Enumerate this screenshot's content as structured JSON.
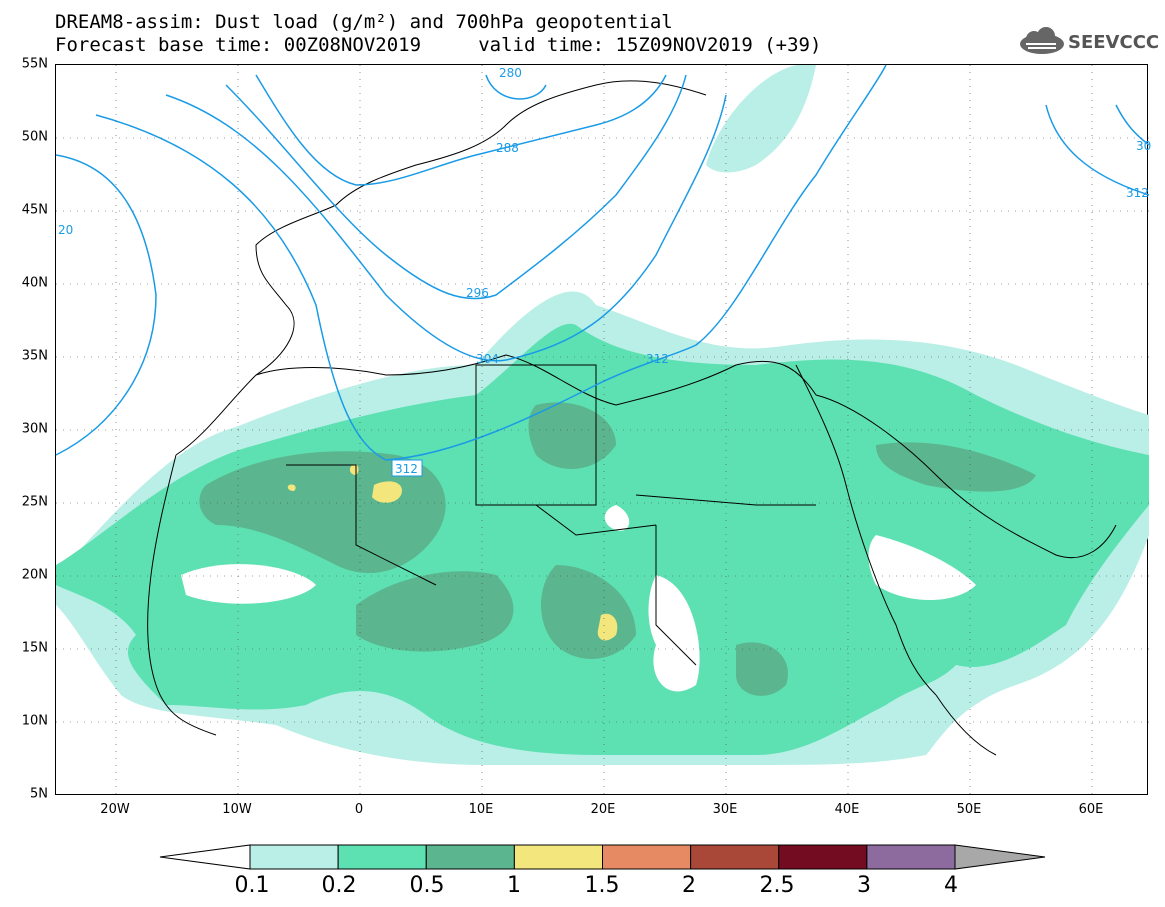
{
  "header": {
    "title_line1": "DREAM8-assim: Dust load (g/m²) and 700hPa geopotential",
    "title_line2": "Forecast base time: 00Z08NOV2019     valid time: 15Z09NOV2019 (+39)"
  },
  "logo": {
    "text": "SEEVCCC",
    "icon": "cloud-icon"
  },
  "map": {
    "region": "North Africa, Europe and Middle East",
    "lat_labels": [
      "55N",
      "50N",
      "45N",
      "40N",
      "35N",
      "30N",
      "25N",
      "20N",
      "15N",
      "10N",
      "5N"
    ],
    "lon_labels": [
      "20W",
      "10W",
      "0",
      "10E",
      "20E",
      "30E",
      "40E",
      "50E",
      "60E"
    ],
    "contour_labels": [
      "280",
      "288",
      "296",
      "304",
      "312",
      "312",
      "312",
      "20",
      "30"
    ],
    "contour_color": "#1a9be6",
    "coastline_color": "#000000"
  },
  "legend": {
    "colors": [
      "#ffffff",
      "#b9efe6",
      "#5ee1b2",
      "#5bb58f",
      "#f3e67c",
      "#e58a62",
      "#a94739",
      "#740c21",
      "#8e6b9e",
      "#a8a8a8"
    ],
    "labels": [
      "0.1",
      "0.2",
      "0.5",
      "1",
      "1.5",
      "2",
      "2.5",
      "3",
      "4"
    ]
  }
}
